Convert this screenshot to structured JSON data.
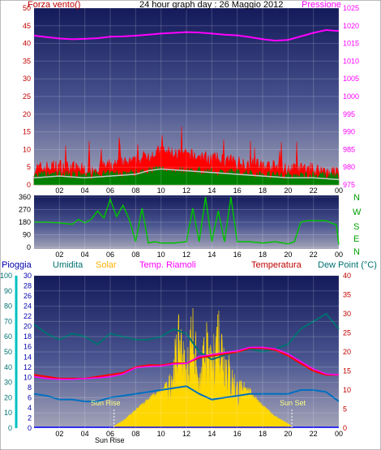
{
  "header": {
    "title": "24 hour graph day : 26 Maggio 2012",
    "left": "Forza vento()",
    "right": "Pressione"
  },
  "panel2_dirs": [
    "N",
    "W",
    "S",
    "E",
    "N"
  ],
  "panel3_header": {
    "pioggia": "Pioggia",
    "umidita": "Umidita",
    "solar": "Solar",
    "temp_riamoli": "Temp. Riamoli",
    "temperatura": "Temperatura",
    "dew_point": "Dew Point (°C)"
  },
  "sun": {
    "rise_label": "Sun Rise",
    "set_label": "Sun Set",
    "rise_x": 6.3,
    "set_x": 20.3
  },
  "colors": {
    "wind": "#ff0000",
    "gust_fill": "#008000",
    "wind_avg": "#c8c8c8",
    "pressure": "#ff00ff",
    "dir": "#00c000",
    "humidity": "#007070",
    "solar": "#ffd700",
    "temp": "#ff0000",
    "temp_riamoli": "#ff00ff",
    "dew": "#0070c0",
    "rain": "#00c0c0"
  },
  "chart_data": [
    {
      "type": "line",
      "x_ticks": [
        "02",
        "04",
        "06",
        "08",
        "10",
        "12",
        "14",
        "16",
        "18",
        "20",
        "22",
        "00"
      ],
      "left_axis": {
        "ticks": [
          "0",
          "5",
          "10",
          "15",
          "20",
          "25",
          "30",
          "35",
          "40",
          "45",
          "50"
        ],
        "ylim": [
          0,
          50
        ]
      },
      "right_axis": {
        "ticks": [
          "975",
          "980",
          "985",
          "990",
          "995",
          "1000",
          "1005",
          "1010",
          "1015",
          "1020",
          "1025"
        ],
        "ylim": [
          975,
          1025
        ]
      },
      "series": [
        {
          "axis": "right",
          "x": [
            0,
            1,
            2,
            3,
            4,
            5,
            6,
            7,
            8,
            9,
            10,
            11,
            12,
            13,
            14,
            15,
            16,
            17,
            18,
            19,
            20,
            21,
            22,
            23,
            24
          ],
          "values": [
            1017.2,
            1016.8,
            1016.4,
            1016.2,
            1016.3,
            1016.5,
            1016.9,
            1017.0,
            1017.2,
            1017.5,
            1017.8,
            1018.0,
            1018.2,
            1018.1,
            1017.8,
            1017.5,
            1017.3,
            1016.8,
            1016.2,
            1015.8,
            1016.0,
            1017.0,
            1018.0,
            1018.8,
            1018.5
          ]
        },
        {
          "axis": "left",
          "x": [
            0,
            2,
            4,
            6,
            8,
            9,
            10,
            12,
            14,
            16,
            18,
            20,
            22,
            24
          ],
          "values": [
            4,
            5,
            4,
            5,
            6,
            8,
            9,
            8,
            7,
            6,
            5,
            4,
            4,
            3
          ]
        }
      ]
    },
    {
      "type": "line",
      "x_ticks": [
        "02",
        "04",
        "06",
        "08",
        "10",
        "12",
        "14",
        "16",
        "18",
        "20",
        "22",
        "00"
      ],
      "y_ticks": [
        "0",
        "90",
        "180",
        "270",
        "360"
      ],
      "ylim": [
        0,
        360
      ],
      "series": [
        {
          "x": [
            0,
            1,
            2,
            3,
            3.5,
            4,
            4.5,
            5,
            5.5,
            6,
            6.5,
            7,
            7.5,
            8,
            8.5,
            9,
            9.5,
            10,
            11,
            12,
            12.5,
            13,
            13.5,
            14,
            14.5,
            15,
            15.5,
            16,
            17,
            18,
            19,
            20,
            20.5,
            21,
            21.5,
            22,
            23,
            23.8,
            24
          ],
          "values": [
            180,
            180,
            175,
            165,
            200,
            175,
            200,
            260,
            210,
            345,
            220,
            300,
            200,
            40,
            280,
            30,
            40,
            30,
            30,
            40,
            280,
            40,
            360,
            40,
            260,
            40,
            360,
            40,
            40,
            30,
            40,
            25,
            40,
            180,
            190,
            190,
            190,
            160,
            20
          ]
        }
      ]
    },
    {
      "type": "line",
      "x_ticks": [
        "02",
        "04",
        "06",
        "08",
        "10",
        "12",
        "14",
        "16",
        "18",
        "20",
        "22",
        "00"
      ],
      "axes": {
        "rain": {
          "ticks": [
            "0",
            "2",
            "4",
            "6",
            "8",
            "10",
            "12",
            "14",
            "16",
            "18",
            "20",
            "22",
            "24",
            "26",
            "28",
            "30"
          ],
          "ylim": [
            0,
            30
          ]
        },
        "humidity": {
          "ticks": [
            "0",
            "10",
            "20",
            "30",
            "40",
            "50",
            "60",
            "70",
            "80",
            "90",
            "100"
          ],
          "ylim": [
            0,
            100
          ]
        },
        "temperature": {
          "ticks": [
            "0",
            "5",
            "10",
            "15",
            "20",
            "25",
            "30",
            "35",
            "40"
          ],
          "ylim": [
            0,
            40
          ]
        }
      },
      "series": [
        {
          "name": "Umidita",
          "axis": "humidity",
          "x": [
            0,
            1,
            2,
            3,
            4,
            5,
            6,
            7,
            8,
            9,
            10,
            11,
            12,
            13,
            14,
            15,
            16,
            17,
            18,
            19,
            20,
            21,
            22,
            23,
            24
          ],
          "values": [
            68,
            62,
            58,
            62,
            60,
            55,
            62,
            60,
            58,
            58,
            60,
            65,
            62,
            50,
            45,
            48,
            50,
            52,
            50,
            52,
            55,
            65,
            70,
            75,
            65
          ]
        },
        {
          "name": "Temperatura",
          "axis": "temperature",
          "x": [
            0,
            1,
            2,
            3,
            4,
            5,
            6,
            7,
            8,
            9,
            10,
            11,
            12,
            13,
            14,
            15,
            16,
            17,
            18,
            19,
            20,
            21,
            22,
            23,
            24
          ],
          "values": [
            14,
            13.5,
            13,
            13,
            13,
            13.5,
            14,
            14.5,
            16,
            16.5,
            16.5,
            17,
            17,
            18.5,
            19,
            19.5,
            20,
            21,
            21,
            20.5,
            19,
            17,
            15,
            14,
            14
          ]
        },
        {
          "name": "Temp. Riamoli",
          "axis": "temperature",
          "x": [
            0,
            1,
            2,
            3,
            4,
            5,
            6,
            7,
            8,
            9,
            10,
            11,
            12,
            13,
            14,
            15,
            16,
            17,
            18,
            19,
            20,
            21,
            22,
            23,
            24
          ],
          "values": [
            13.5,
            13,
            12.8,
            12.8,
            13,
            13.2,
            13.5,
            14.2,
            15.8,
            16.2,
            16.3,
            16.8,
            17,
            18.8,
            19.3,
            19.8,
            20.3,
            21.2,
            21.2,
            20.8,
            19.5,
            17.5,
            15.5,
            14.2,
            14
          ]
        },
        {
          "name": "Dew Point",
          "axis": "temperature",
          "x": [
            0,
            1,
            2,
            3,
            4,
            5,
            6,
            7,
            8,
            9,
            10,
            11,
            12,
            13,
            14,
            15,
            16,
            17,
            18,
            19,
            20,
            21,
            22,
            23,
            24
          ],
          "values": [
            9,
            8.5,
            7.5,
            7.5,
            7,
            7,
            8,
            8.5,
            9,
            9.5,
            10,
            10.5,
            11,
            9,
            7.5,
            8,
            8.5,
            9,
            9,
            9,
            9,
            10,
            10,
            9.5,
            7
          ]
        },
        {
          "name": "Solar",
          "axis": "humidity",
          "x": [
            6,
            7,
            8,
            9,
            10,
            10.5,
            11,
            11.5,
            12,
            12.5,
            13,
            13.5,
            14,
            14.5,
            15,
            15.5,
            16,
            17,
            18,
            19,
            20,
            20.5
          ],
          "values": [
            0,
            5,
            12,
            20,
            25,
            30,
            55,
            80,
            45,
            92,
            30,
            75,
            50,
            90,
            65,
            45,
            35,
            25,
            15,
            8,
            3,
            0
          ]
        }
      ]
    }
  ]
}
